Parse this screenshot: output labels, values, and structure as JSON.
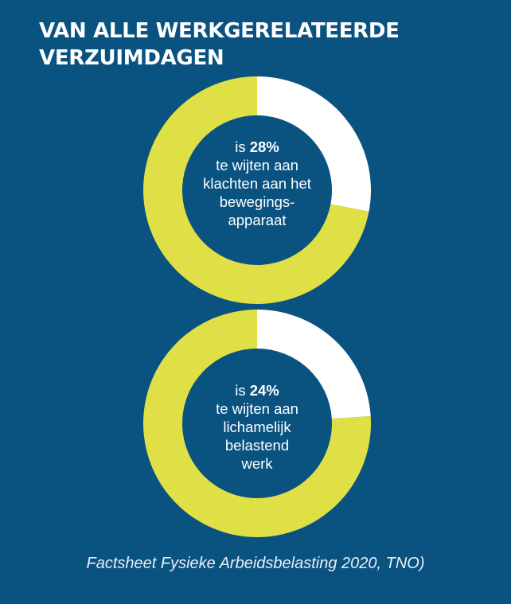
{
  "title_lines": [
    "VAN ALLE WERKGERELATEERDE",
    "VERZUIMDAGEN"
  ],
  "colors": {
    "background": "#0a5381",
    "ring_main": "#dfdf46",
    "ring_highlight": "#ffffff"
  },
  "chart_data": [
    {
      "type": "pie",
      "style": "donut",
      "values": [
        28,
        72
      ],
      "unit": "%",
      "center_text": {
        "prefix": "is",
        "value": "28%",
        "lines": [
          "te wijten aan",
          "klachten aan het",
          "bewegings-",
          "apparaat"
        ]
      }
    },
    {
      "type": "pie",
      "style": "donut",
      "values": [
        24,
        76
      ],
      "unit": "%",
      "center_text": {
        "prefix": "is",
        "value": "24%",
        "lines": [
          "te wijten aan",
          "lichamelijk",
          "belastend",
          "werk"
        ]
      }
    }
  ],
  "source": "Factsheet Fysieke Arbeidsbelasting 2020, TNO)"
}
